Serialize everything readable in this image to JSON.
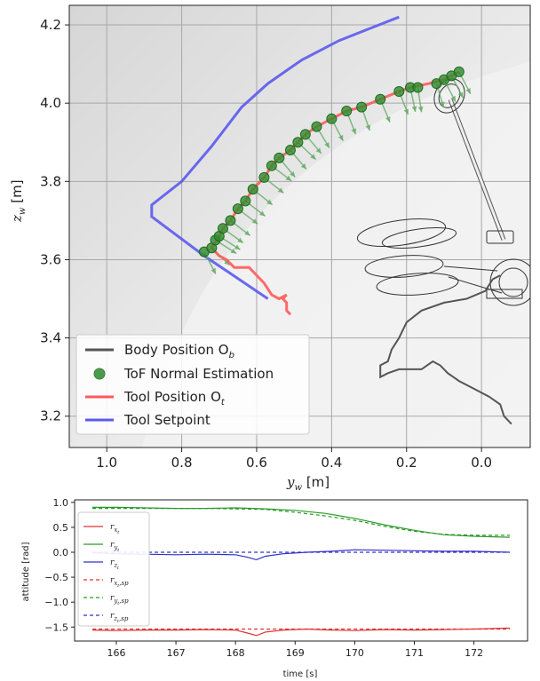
{
  "chart_data": [
    {
      "type": "line",
      "title": "",
      "xlabel": "y_w [m]",
      "ylabel": "z_w [m]",
      "xlim": [
        1.1,
        -0.13
      ],
      "ylim": [
        3.12,
        4.25
      ],
      "x_inverted": true,
      "xticks": [
        "1.0",
        "0.8",
        "0.6",
        "0.4",
        "0.2",
        "0.0"
      ],
      "xtick_values": [
        1.0,
        0.8,
        0.6,
        0.4,
        0.2,
        0.0
      ],
      "yticks": [
        "3.2",
        "3.4",
        "3.6",
        "3.8",
        "4.0",
        "4.2"
      ],
      "ytick_values": [
        3.2,
        3.4,
        3.6,
        3.8,
        4.0,
        4.2
      ],
      "grid": true,
      "legend_position": "lower-left",
      "colors": {
        "body": "#555555",
        "tof": "#2e8b2e",
        "tool": "#ff5a5a",
        "setpoint": "#5a5aee",
        "arrow": "#66aa66"
      },
      "series": [
        {
          "name": "Body Position",
          "legend_label": "Body Position O",
          "legend_sub": "b",
          "points": [
            [
              -0.08,
              3.18
            ],
            [
              -0.06,
              3.2
            ],
            [
              -0.05,
              3.23
            ],
            [
              -0.02,
              3.25
            ],
            [
              0.02,
              3.27
            ],
            [
              0.06,
              3.29
            ],
            [
              0.09,
              3.31
            ],
            [
              0.11,
              3.33
            ],
            [
              0.13,
              3.34
            ],
            [
              0.16,
              3.32
            ],
            [
              0.22,
              3.32
            ],
            [
              0.25,
              3.31
            ],
            [
              0.27,
              3.3
            ],
            [
              0.27,
              3.33
            ],
            [
              0.25,
              3.34
            ],
            [
              0.24,
              3.37
            ],
            [
              0.22,
              3.4
            ],
            [
              0.2,
              3.44
            ],
            [
              0.16,
              3.47
            ],
            [
              0.1,
              3.49
            ],
            [
              0.04,
              3.5
            ],
            [
              -0.01,
              3.52
            ],
            [
              -0.03,
              3.55
            ],
            [
              -0.05,
              3.56
            ]
          ]
        },
        {
          "name": "ToF Normal Estimation",
          "legend_label": "ToF Normal Estimation",
          "points": [
            [
              0.74,
              3.62
            ],
            [
              0.72,
              3.63
            ],
            [
              0.71,
              3.65
            ],
            [
              0.7,
              3.66
            ],
            [
              0.69,
              3.68
            ],
            [
              0.67,
              3.7
            ],
            [
              0.65,
              3.73
            ],
            [
              0.63,
              3.75
            ],
            [
              0.61,
              3.78
            ],
            [
              0.58,
              3.81
            ],
            [
              0.56,
              3.84
            ],
            [
              0.54,
              3.86
            ],
            [
              0.51,
              3.88
            ],
            [
              0.49,
              3.9
            ],
            [
              0.47,
              3.92
            ],
            [
              0.44,
              3.94
            ],
            [
              0.4,
              3.96
            ],
            [
              0.36,
              3.98
            ],
            [
              0.32,
              3.99
            ],
            [
              0.27,
              4.01
            ],
            [
              0.22,
              4.03
            ],
            [
              0.19,
              4.04
            ],
            [
              0.17,
              4.04
            ],
            [
              0.12,
              4.05
            ],
            [
              0.1,
              4.06
            ],
            [
              0.08,
              4.07
            ],
            [
              0.06,
              4.08
            ]
          ]
        },
        {
          "name": "Tool Position",
          "legend_label": "Tool Position O",
          "legend_sub": "t",
          "points": [
            [
              0.51,
              3.46
            ],
            [
              0.52,
              3.47
            ],
            [
              0.52,
              3.49
            ],
            [
              0.53,
              3.5
            ],
            [
              0.52,
              3.51
            ],
            [
              0.54,
              3.5
            ],
            [
              0.56,
              3.51
            ],
            [
              0.58,
              3.54
            ],
            [
              0.6,
              3.56
            ],
            [
              0.62,
              3.58
            ],
            [
              0.66,
              3.58
            ],
            [
              0.68,
              3.6
            ],
            [
              0.7,
              3.61
            ],
            [
              0.72,
              3.63
            ],
            [
              0.7,
              3.66
            ],
            [
              0.69,
              3.68
            ],
            [
              0.67,
              3.7
            ],
            [
              0.65,
              3.73
            ],
            [
              0.63,
              3.75
            ],
            [
              0.61,
              3.78
            ],
            [
              0.58,
              3.81
            ],
            [
              0.56,
              3.84
            ],
            [
              0.54,
              3.86
            ],
            [
              0.51,
              3.88
            ],
            [
              0.49,
              3.9
            ],
            [
              0.47,
              3.92
            ],
            [
              0.44,
              3.94
            ],
            [
              0.4,
              3.96
            ],
            [
              0.36,
              3.98
            ],
            [
              0.32,
              3.99
            ],
            [
              0.27,
              4.01
            ],
            [
              0.22,
              4.03
            ],
            [
              0.19,
              4.04
            ],
            [
              0.14,
              4.05
            ],
            [
              0.1,
              4.06
            ],
            [
              0.06,
              4.08
            ]
          ]
        },
        {
          "name": "Tool Setpoint",
          "legend_label": "Tool Setpoint",
          "points": [
            [
              0.57,
              3.5
            ],
            [
              0.74,
              3.61
            ],
            [
              0.88,
              3.71
            ],
            [
              0.88,
              3.74
            ],
            [
              0.8,
              3.8
            ],
            [
              0.72,
              3.89
            ],
            [
              0.64,
              3.99
            ],
            [
              0.57,
              4.05
            ],
            [
              0.48,
              4.11
            ],
            [
              0.38,
              4.16
            ],
            [
              0.3,
              4.19
            ],
            [
              0.22,
              4.22
            ]
          ]
        }
      ]
    },
    {
      "type": "line",
      "title": "",
      "xlabel": "time [s]",
      "ylabel": "attitude [rad]",
      "xlim": [
        165.3,
        172.9
      ],
      "ylim": [
        -1.78,
        1.05
      ],
      "xticks": [
        "166",
        "167",
        "168",
        "169",
        "170",
        "171",
        "172"
      ],
      "xtick_values": [
        166,
        167,
        168,
        169,
        170,
        171,
        172
      ],
      "yticks": [
        "1.0",
        "0.5",
        "0.0",
        "−0.5",
        "−1.0",
        "−1.5"
      ],
      "ytick_values": [
        1.0,
        0.5,
        0.0,
        -0.5,
        -1.0,
        -1.5
      ],
      "grid": false,
      "legend_position": "upper-left",
      "series": [
        {
          "name": "r_x_t",
          "legend_main": "r",
          "legend_sub": "x",
          "legend_subsub": "t",
          "legend_tail": "",
          "color": "#e03030",
          "dashed": false,
          "x": [
            165.6,
            166.0,
            166.5,
            167.0,
            167.5,
            168.0,
            168.2,
            168.35,
            168.5,
            168.8,
            169.2,
            169.6,
            170.0,
            170.5,
            171.0,
            171.5,
            172.0,
            172.6
          ],
          "values": [
            -1.56,
            -1.57,
            -1.56,
            -1.56,
            -1.55,
            -1.56,
            -1.62,
            -1.67,
            -1.6,
            -1.56,
            -1.54,
            -1.56,
            -1.57,
            -1.55,
            -1.56,
            -1.55,
            -1.54,
            -1.52
          ]
        },
        {
          "name": "r_y_t",
          "legend_main": "r",
          "legend_sub": "y",
          "legend_subsub": "t",
          "legend_tail": "",
          "color": "#2a9a2a",
          "dashed": false,
          "x": [
            165.6,
            166.0,
            166.5,
            167.0,
            167.5,
            168.0,
            168.5,
            169.0,
            169.5,
            170.0,
            170.5,
            171.0,
            171.5,
            172.0,
            172.6
          ],
          "values": [
            0.9,
            0.9,
            0.89,
            0.88,
            0.88,
            0.89,
            0.87,
            0.84,
            0.78,
            0.68,
            0.55,
            0.44,
            0.35,
            0.32,
            0.3
          ]
        },
        {
          "name": "r_z_t",
          "legend_main": "r",
          "legend_sub": "z",
          "legend_subsub": "t",
          "legend_tail": "",
          "color": "#3030c8",
          "dashed": false,
          "x": [
            165.6,
            166.0,
            166.5,
            167.0,
            167.5,
            168.0,
            168.2,
            168.35,
            168.5,
            168.8,
            169.2,
            169.6,
            170.0,
            170.5,
            171.0,
            171.5,
            172.0,
            172.6
          ],
          "values": [
            -0.01,
            -0.03,
            -0.04,
            -0.05,
            -0.04,
            -0.05,
            -0.1,
            -0.15,
            -0.08,
            -0.03,
            0.0,
            0.02,
            0.05,
            0.04,
            0.03,
            0.02,
            0.02,
            0.0
          ]
        },
        {
          "name": "r_x_t_sp",
          "legend_main": "r",
          "legend_sub": "x",
          "legend_subsub": "t",
          "legend_tail": ",sp",
          "color": "#e03030",
          "dashed": true,
          "x": [
            165.6,
            172.6
          ],
          "values": [
            -1.54,
            -1.54
          ]
        },
        {
          "name": "r_y_t_sp",
          "legend_main": "r",
          "legend_sub": "y",
          "legend_subsub": "t",
          "legend_tail": ",sp",
          "color": "#2a9a2a",
          "dashed": true,
          "x": [
            165.6,
            166.5,
            167.5,
            168.5,
            169.0,
            169.5,
            170.0,
            170.5,
            171.0,
            171.5,
            172.0,
            172.6
          ],
          "values": [
            0.88,
            0.88,
            0.88,
            0.86,
            0.8,
            0.73,
            0.64,
            0.52,
            0.42,
            0.36,
            0.34,
            0.34
          ]
        },
        {
          "name": "r_z_t_sp",
          "legend_main": "r",
          "legend_sub": "z",
          "legend_subsub": "t",
          "legend_tail": ",sp",
          "color": "#3030c8",
          "dashed": true,
          "x": [
            165.6,
            172.6
          ],
          "values": [
            0.0,
            0.0
          ]
        }
      ]
    }
  ]
}
